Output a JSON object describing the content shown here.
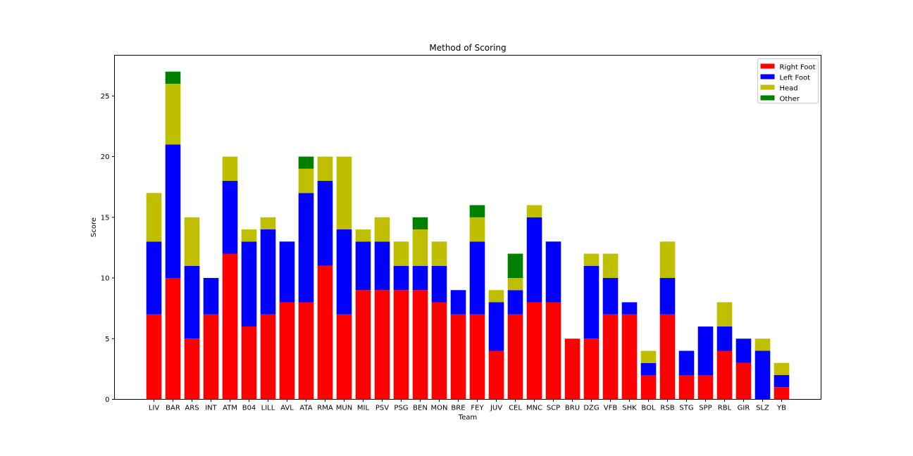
{
  "chart_data": {
    "type": "bar",
    "stacked": true,
    "title": "Method of Scoring",
    "xlabel": "Team",
    "ylabel": "Score",
    "ylim": [
      0,
      28.35
    ],
    "yticks": [
      0,
      5,
      10,
      15,
      20,
      25
    ],
    "grid": false,
    "legend_position": "top-right",
    "categories": [
      "LIV",
      "BAR",
      "ARS",
      "INT",
      "ATM",
      "B04",
      "LILL",
      "AVL",
      "ATA",
      "RMA",
      "MUN",
      "MIL",
      "PSV",
      "PSG",
      "BEN",
      "MON",
      "BRE",
      "FEY",
      "JUV",
      "CEL",
      "MNC",
      "SCP",
      "BRU",
      "DZG",
      "VFB",
      "SHK",
      "BOL",
      "RSB",
      "STG",
      "SPP",
      "RBL",
      "GIR",
      "SLZ",
      "YB"
    ],
    "series": [
      {
        "name": "Right Foot",
        "color": "#ff0000",
        "values": [
          7,
          10,
          5,
          7,
          12,
          6,
          7,
          8,
          8,
          11,
          7,
          9,
          9,
          9,
          9,
          8,
          7,
          7,
          4,
          7,
          8,
          8,
          5,
          5,
          7,
          7,
          2,
          7,
          2,
          2,
          4,
          3,
          0,
          1
        ]
      },
      {
        "name": "Left Foot",
        "color": "#0000ff",
        "values": [
          6,
          11,
          6,
          3,
          6,
          7,
          7,
          5,
          9,
          7,
          7,
          4,
          4,
          2,
          2,
          3,
          2,
          6,
          4,
          2,
          7,
          5,
          0,
          6,
          3,
          1,
          1,
          3,
          2,
          4,
          2,
          2,
          4,
          1
        ]
      },
      {
        "name": "Head",
        "color": "#bfbf00",
        "values": [
          4,
          5,
          4,
          0,
          2,
          1,
          1,
          0,
          2,
          2,
          6,
          1,
          2,
          2,
          3,
          2,
          0,
          2,
          1,
          1,
          1,
          0,
          0,
          1,
          2,
          0,
          1,
          3,
          0,
          0,
          2,
          0,
          1,
          1
        ]
      },
      {
        "name": "Other",
        "color": "#008000",
        "values": [
          0,
          1,
          0,
          0,
          0,
          0,
          0,
          0,
          1,
          0,
          0,
          0,
          0,
          0,
          1,
          0,
          0,
          1,
          0,
          2,
          0,
          0,
          0,
          0,
          0,
          0,
          0,
          0,
          0,
          0,
          0,
          0,
          0,
          0
        ]
      }
    ]
  }
}
